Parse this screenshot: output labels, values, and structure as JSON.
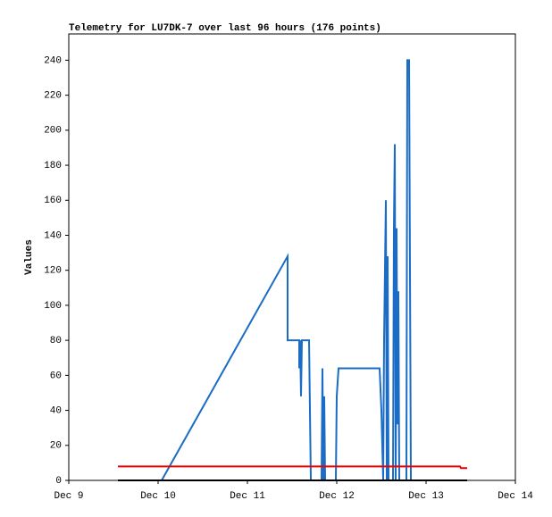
{
  "chart_data": {
    "type": "line",
    "title": "Telemetry for LU7DK-7 over last 96 hours (176 points)",
    "y_label": "Values",
    "xlim": [
      9,
      14
    ],
    "xticks": [
      {
        "value": 9,
        "label": "Dec 9"
      },
      {
        "value": 10,
        "label": "Dec 10"
      },
      {
        "value": 11,
        "label": "Dec 11"
      },
      {
        "value": 12,
        "label": "Dec 12"
      },
      {
        "value": 13,
        "label": "Dec 13"
      },
      {
        "value": 14,
        "label": "Dec 14"
      }
    ],
    "ylim": [
      0,
      255
    ],
    "yticks": [
      0,
      20,
      40,
      60,
      80,
      100,
      120,
      140,
      160,
      180,
      200,
      220,
      240
    ],
    "grid": false,
    "series": [
      {
        "color": "#1a6cc4",
        "x": [
          10.04,
          11.45,
          11.45,
          11.58,
          11.58,
          11.59,
          11.6,
          11.61,
          11.69,
          11.7,
          11.71,
          11.83,
          11.84,
          11.85,
          11.86,
          11.87,
          11.99,
          12.0,
          12.02,
          12.48,
          12.5,
          12.52,
          12.53,
          12.55,
          12.56,
          12.57,
          12.58,
          12.63,
          12.64,
          12.65,
          12.66,
          12.67,
          12.68,
          12.69,
          12.7,
          12.78,
          12.79,
          12.81,
          12.82,
          12.83
        ],
        "values": [
          0,
          128,
          80,
          80,
          64,
          80,
          48,
          80,
          80,
          40,
          0,
          0,
          64,
          0,
          48,
          0,
          0,
          48,
          64,
          64,
          40,
          0,
          80,
          160,
          0,
          128,
          0,
          0,
          144,
          192,
          0,
          144,
          32,
          108,
          0,
          0,
          240,
          240,
          120,
          0
        ]
      },
      {
        "color": "#ee0000",
        "x": [
          9.55,
          13.38,
          13.39,
          13.46
        ],
        "values": [
          8,
          8,
          7,
          7
        ]
      },
      {
        "color": "#000000",
        "x": [
          9.55,
          13.46
        ],
        "values": [
          0,
          0
        ]
      }
    ]
  }
}
